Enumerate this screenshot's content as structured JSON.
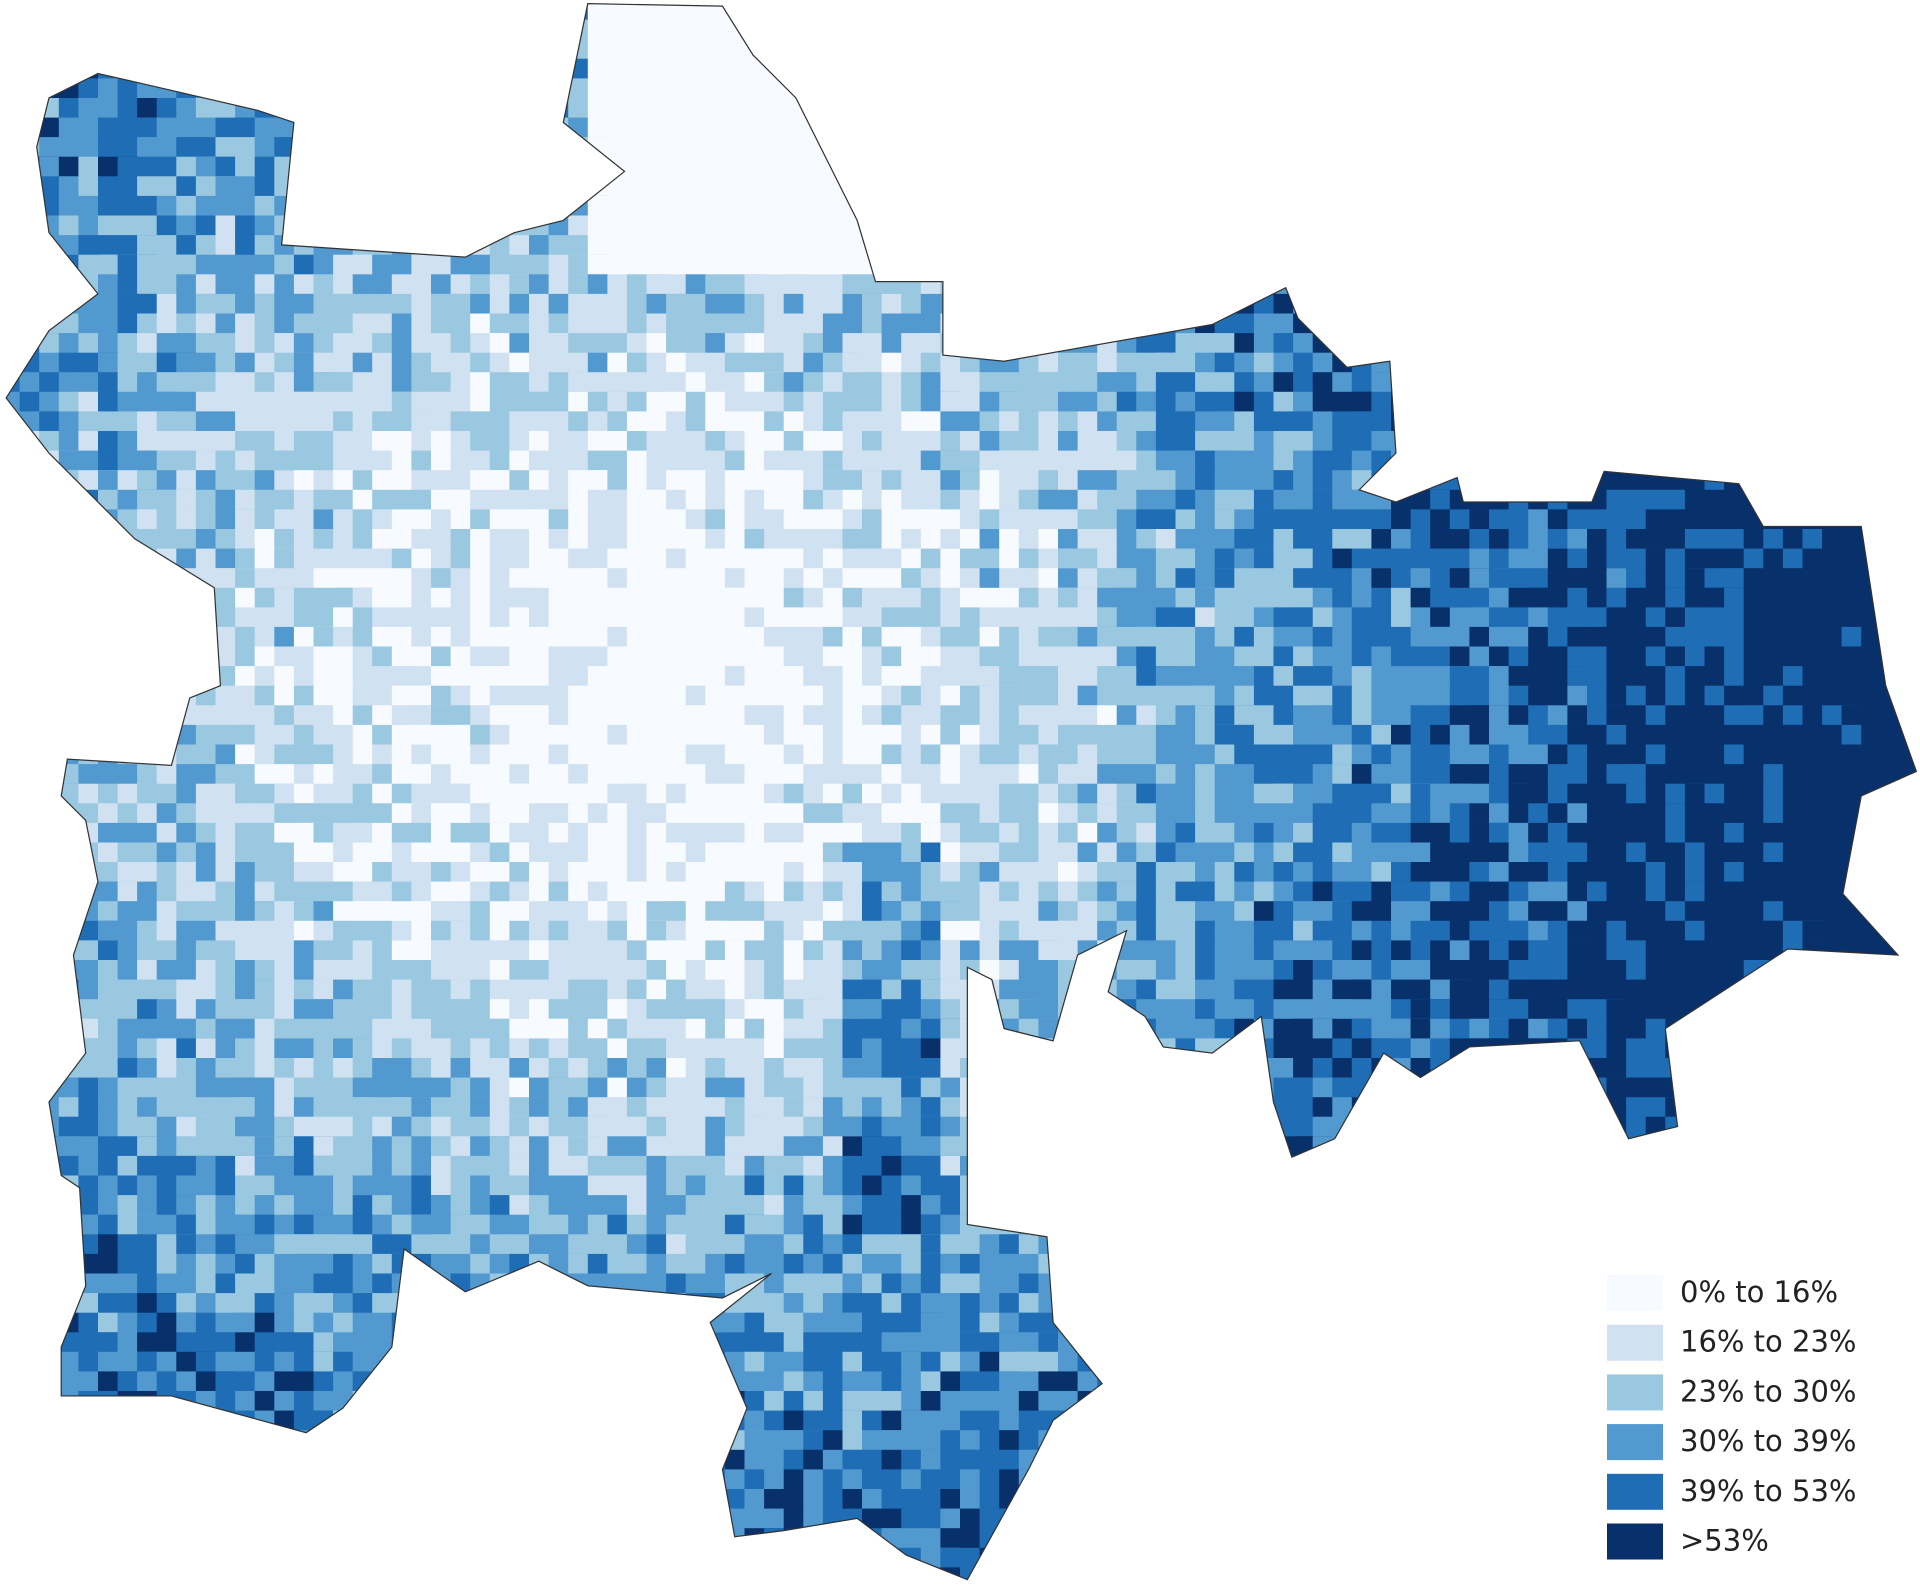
{
  "legend": {
    "items": [
      {
        "label": "0% to 16%",
        "color": "#f7fbff"
      },
      {
        "label": "16% to 23%",
        "color": "#d0e1f2"
      },
      {
        "label": "23% to 30%",
        "color": "#9ac8e0"
      },
      {
        "label": "30% to 39%",
        "color": "#5299cf"
      },
      {
        "label": "39% to 53%",
        "color": "#1f6db5"
      },
      {
        "label": ">53%",
        "color": "#08306b"
      }
    ]
  }
}
